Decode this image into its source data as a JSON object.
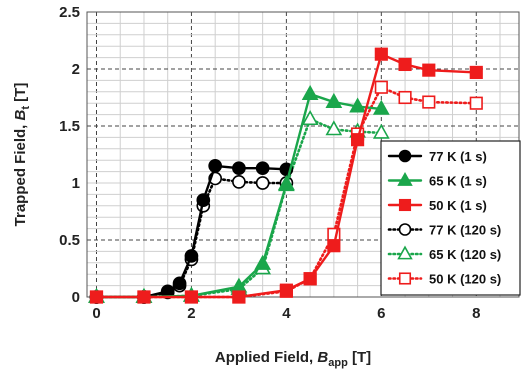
{
  "chart_data": {
    "type": "line",
    "xlabel": {
      "prefix": "Applied Field, ",
      "sym": "B",
      "sub": "app",
      "suffix": " [T]"
    },
    "ylabel": {
      "prefix": "Trapped Field, ",
      "sym": "B",
      "sub": "t",
      "suffix": " [T]"
    },
    "xlim": [
      -0.2,
      8.9
    ],
    "ylim": [
      0,
      2.5
    ],
    "x_ticks": [
      "0",
      "2",
      "4",
      "6",
      "8"
    ],
    "x_tick_values": [
      0,
      2,
      4,
      6,
      8
    ],
    "y_ticks": [
      "0",
      "0.5",
      "1",
      "1.5",
      "2",
      "2.5"
    ],
    "y_tick_values": [
      0,
      0.5,
      1,
      1.5,
      2,
      2.5
    ],
    "grid": true,
    "legend_position": "right",
    "series": [
      {
        "name": "77 K (1 s)",
        "color": "#000000",
        "line": "solid",
        "marker": "circle",
        "filled": true,
        "x": [
          0,
          1,
          1.5,
          1.75,
          2,
          2.25,
          2.5,
          3,
          3.5,
          4
        ],
        "y": [
          0,
          0,
          0.05,
          0.12,
          0.36,
          0.85,
          1.15,
          1.13,
          1.13,
          1.12
        ]
      },
      {
        "name": "65 K (1 s)",
        "color": "#1aa64b",
        "line": "solid",
        "marker": "triangle",
        "filled": true,
        "x": [
          0,
          1,
          2,
          3,
          3.5,
          4,
          4.5,
          5,
          5.5,
          6
        ],
        "y": [
          0,
          0,
          0.01,
          0.09,
          0.29,
          0.99,
          1.78,
          1.71,
          1.67,
          1.65
        ]
      },
      {
        "name": "50 K (1 s)",
        "color": "#ee1c1c",
        "line": "solid",
        "marker": "square",
        "filled": true,
        "x": [
          0,
          1,
          2,
          3,
          4,
          4.5,
          5,
          5.5,
          6,
          6.5,
          7,
          8
        ],
        "y": [
          0,
          0,
          0,
          0,
          0.06,
          0.16,
          0.45,
          1.38,
          2.13,
          2.04,
          1.99,
          1.97
        ]
      },
      {
        "name": "77 K (120 s)",
        "color": "#000000",
        "line": "dotted",
        "marker": "circle",
        "filled": false,
        "x": [
          0,
          1,
          1.5,
          1.75,
          2,
          2.25,
          2.5,
          3,
          3.5,
          4
        ],
        "y": [
          0,
          0,
          0.04,
          0.1,
          0.33,
          0.8,
          1.04,
          1.01,
          1.0,
          1.0
        ]
      },
      {
        "name": "65 K (120 s)",
        "color": "#1aa64b",
        "line": "dotted",
        "marker": "triangle",
        "filled": false,
        "x": [
          0,
          1,
          2,
          3,
          3.5,
          4,
          4.5,
          5,
          5.5,
          6
        ],
        "y": [
          0,
          0,
          0.01,
          0.07,
          0.25,
          0.98,
          1.56,
          1.47,
          1.45,
          1.44
        ]
      },
      {
        "name": "50 K (120 s)",
        "color": "#ee1c1c",
        "line": "dotted",
        "marker": "square",
        "filled": false,
        "x": [
          0,
          1,
          2,
          3,
          4,
          4.5,
          5,
          5.5,
          6,
          6.5,
          7,
          8
        ],
        "y": [
          0,
          0,
          0,
          0,
          0.05,
          0.16,
          0.55,
          1.43,
          1.84,
          1.75,
          1.71,
          1.7
        ]
      }
    ]
  }
}
